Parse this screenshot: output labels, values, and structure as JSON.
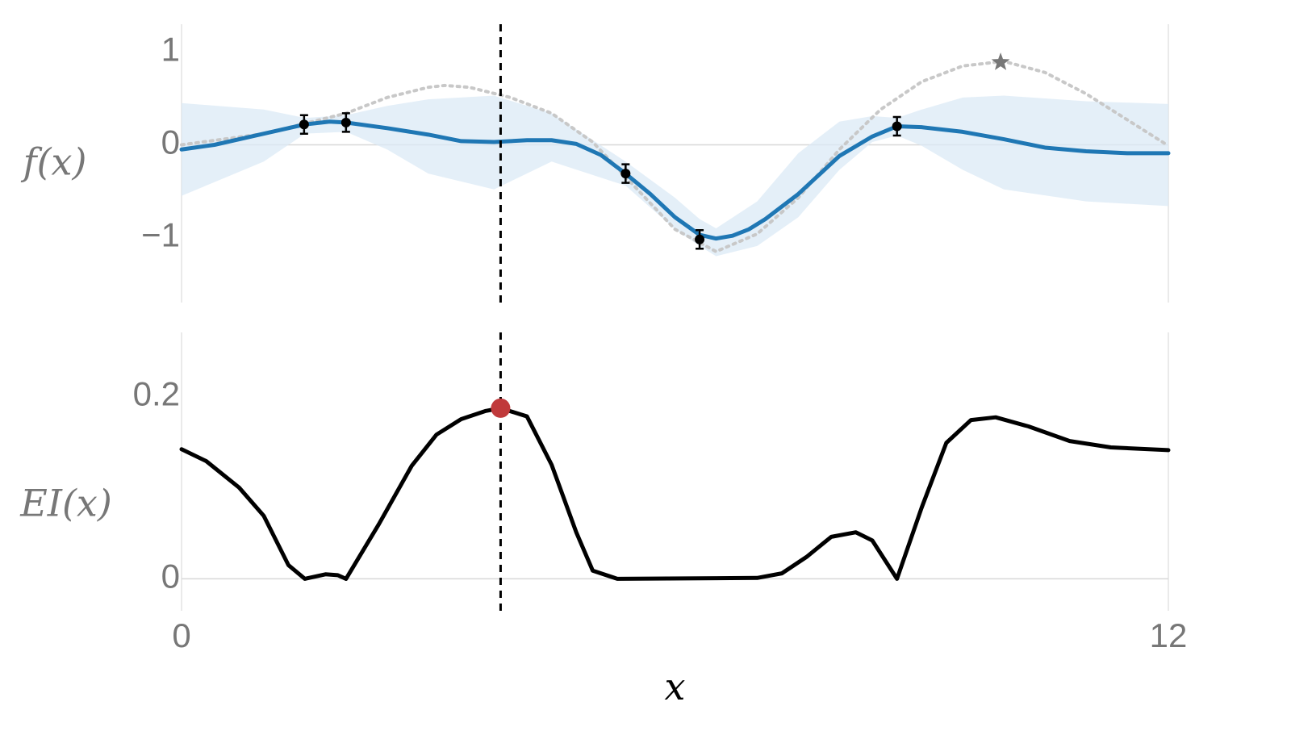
{
  "chart_data": [
    {
      "type": "line",
      "ylabel": "f(x)",
      "xlim": [
        0,
        12
      ],
      "ylim": [
        -1.7,
        1.3
      ],
      "yticks": [
        {
          "value": -1,
          "label": "−1"
        },
        0,
        1
      ],
      "zeroline": true,
      "vline": 3.88,
      "series": [
        {
          "kind": "band",
          "color": "#dbe9f6",
          "x": [
            0,
            1,
            1.5,
            2,
            2.5,
            3,
            3.8,
            4.5,
            5.4,
            6,
            6.3,
            6.5,
            7,
            7.5,
            8,
            8.4,
            8.7,
            9,
            9.5,
            10,
            11,
            12
          ],
          "upper": [
            0.45,
            0.38,
            0.29,
            0.32,
            0.42,
            0.49,
            0.53,
            0.34,
            -0.18,
            -0.57,
            -0.8,
            -0.9,
            -0.61,
            -0.09,
            0.25,
            0.31,
            0.29,
            0.38,
            0.51,
            0.53,
            0.47,
            0.44
          ],
          "lower": [
            -0.55,
            -0.18,
            0.12,
            0.14,
            -0.05,
            -0.31,
            -0.48,
            -0.18,
            -0.44,
            -0.91,
            -1.09,
            -1.2,
            -1.09,
            -0.78,
            -0.27,
            0.03,
            0.1,
            -0.01,
            -0.27,
            -0.48,
            -0.61,
            -0.66
          ]
        },
        {
          "kind": "line",
          "color": "#c8c8c8",
          "dash": true,
          "x": [
            0,
            1,
            2,
            2.5,
            3,
            3.2,
            3.5,
            4,
            4.5,
            5,
            5.5,
            6,
            6.5,
            7,
            7.5,
            8,
            8.5,
            9,
            9.5,
            10,
            10.5,
            11,
            11.5,
            12
          ],
          "values": [
            0.0,
            0.12,
            0.34,
            0.51,
            0.62,
            0.64,
            0.62,
            0.51,
            0.34,
            0.03,
            -0.44,
            -0.91,
            -1.15,
            -0.96,
            -0.57,
            -0.05,
            0.38,
            0.68,
            0.85,
            0.9,
            0.78,
            0.55,
            0.27,
            -0.01
          ]
        },
        {
          "kind": "line",
          "color": "#1f77b4",
          "x": [
            0,
            0.4,
            1,
            1.5,
            1.8,
            2,
            2.5,
            3,
            3.4,
            3.8,
            4.2,
            4.5,
            4.8,
            5.1,
            5.4,
            5.7,
            6,
            6.3,
            6.5,
            6.7,
            6.9,
            7.1,
            7.5,
            8,
            8.4,
            8.7,
            9,
            9.5,
            10,
            10.5,
            11,
            11.5,
            12
          ],
          "values": [
            -0.05,
            0.0,
            0.12,
            0.22,
            0.25,
            0.24,
            0.18,
            0.11,
            0.04,
            0.03,
            0.05,
            0.05,
            0.01,
            -0.11,
            -0.31,
            -0.53,
            -0.78,
            -0.97,
            -1.01,
            -0.98,
            -0.91,
            -0.8,
            -0.53,
            -0.12,
            0.09,
            0.2,
            0.19,
            0.14,
            0.06,
            -0.03,
            -0.07,
            -0.09,
            -0.09
          ]
        },
        {
          "kind": "errorbar",
          "color": "#000000",
          "x": [
            1.49,
            2.0,
            5.4,
            6.3,
            8.7
          ],
          "values": [
            0.22,
            0.24,
            -0.31,
            -1.02,
            0.2
          ],
          "errors": [
            0.1,
            0.1,
            0.1,
            0.1,
            0.1
          ]
        },
        {
          "kind": "star",
          "color": "#777777",
          "x": [
            9.96
          ],
          "values": [
            0.89
          ]
        }
      ]
    },
    {
      "type": "line",
      "ylabel": "EI(x)",
      "xlabel": "x",
      "xlim": [
        0,
        12
      ],
      "ylim": [
        -0.035,
        0.27
      ],
      "xticks": [
        0,
        12
      ],
      "yticks": [
        0,
        0.2
      ],
      "zeroline": true,
      "vline": 3.88,
      "series": [
        {
          "kind": "line",
          "color": "#000000",
          "x": [
            0,
            0.3,
            0.7,
            1.0,
            1.3,
            1.5,
            1.75,
            1.9,
            2.0,
            2.4,
            2.8,
            3.1,
            3.4,
            3.7,
            3.88,
            4.2,
            4.5,
            4.8,
            5.0,
            5.3,
            7.0,
            7.3,
            7.6,
            7.9,
            8.2,
            8.4,
            8.7,
            9.0,
            9.3,
            9.6,
            9.9,
            10.3,
            10.8,
            11.3,
            12
          ],
          "values": [
            0.142,
            0.129,
            0.1,
            0.069,
            0.015,
            0,
            0.005,
            0.004,
            0,
            0.06,
            0.124,
            0.158,
            0.175,
            0.184,
            0.187,
            0.178,
            0.125,
            0.051,
            0.009,
            0,
            0.001,
            0.006,
            0.024,
            0.046,
            0.051,
            0.042,
            0,
            0.078,
            0.149,
            0.174,
            0.177,
            0.167,
            0.151,
            0.144,
            0.141
          ]
        },
        {
          "kind": "point",
          "color": "#c0393b",
          "x": [
            3.88
          ],
          "values": [
            0.187
          ]
        }
      ]
    }
  ]
}
